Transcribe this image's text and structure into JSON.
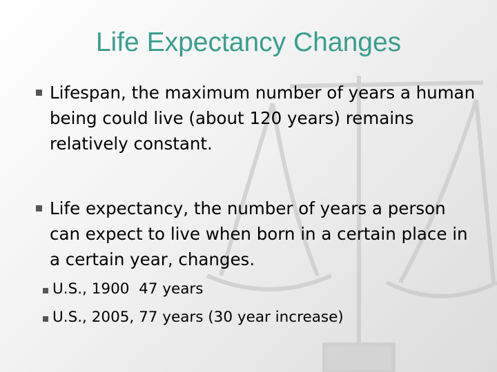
{
  "title": "Life Expectancy Changes",
  "bullets": [
    {
      "text": "Lifespan, the maximum number of years a human being could live (about 120 years) remains relatively constant."
    },
    {
      "text": "Life expectancy, the number of years a person can expect to live when born in a certain place in a certain year, changes.",
      "sub_bullets": [
        "U.S., 1900  47 years",
        "U.S., 2005, 77 years (30 year increase)"
      ]
    }
  ]
}
